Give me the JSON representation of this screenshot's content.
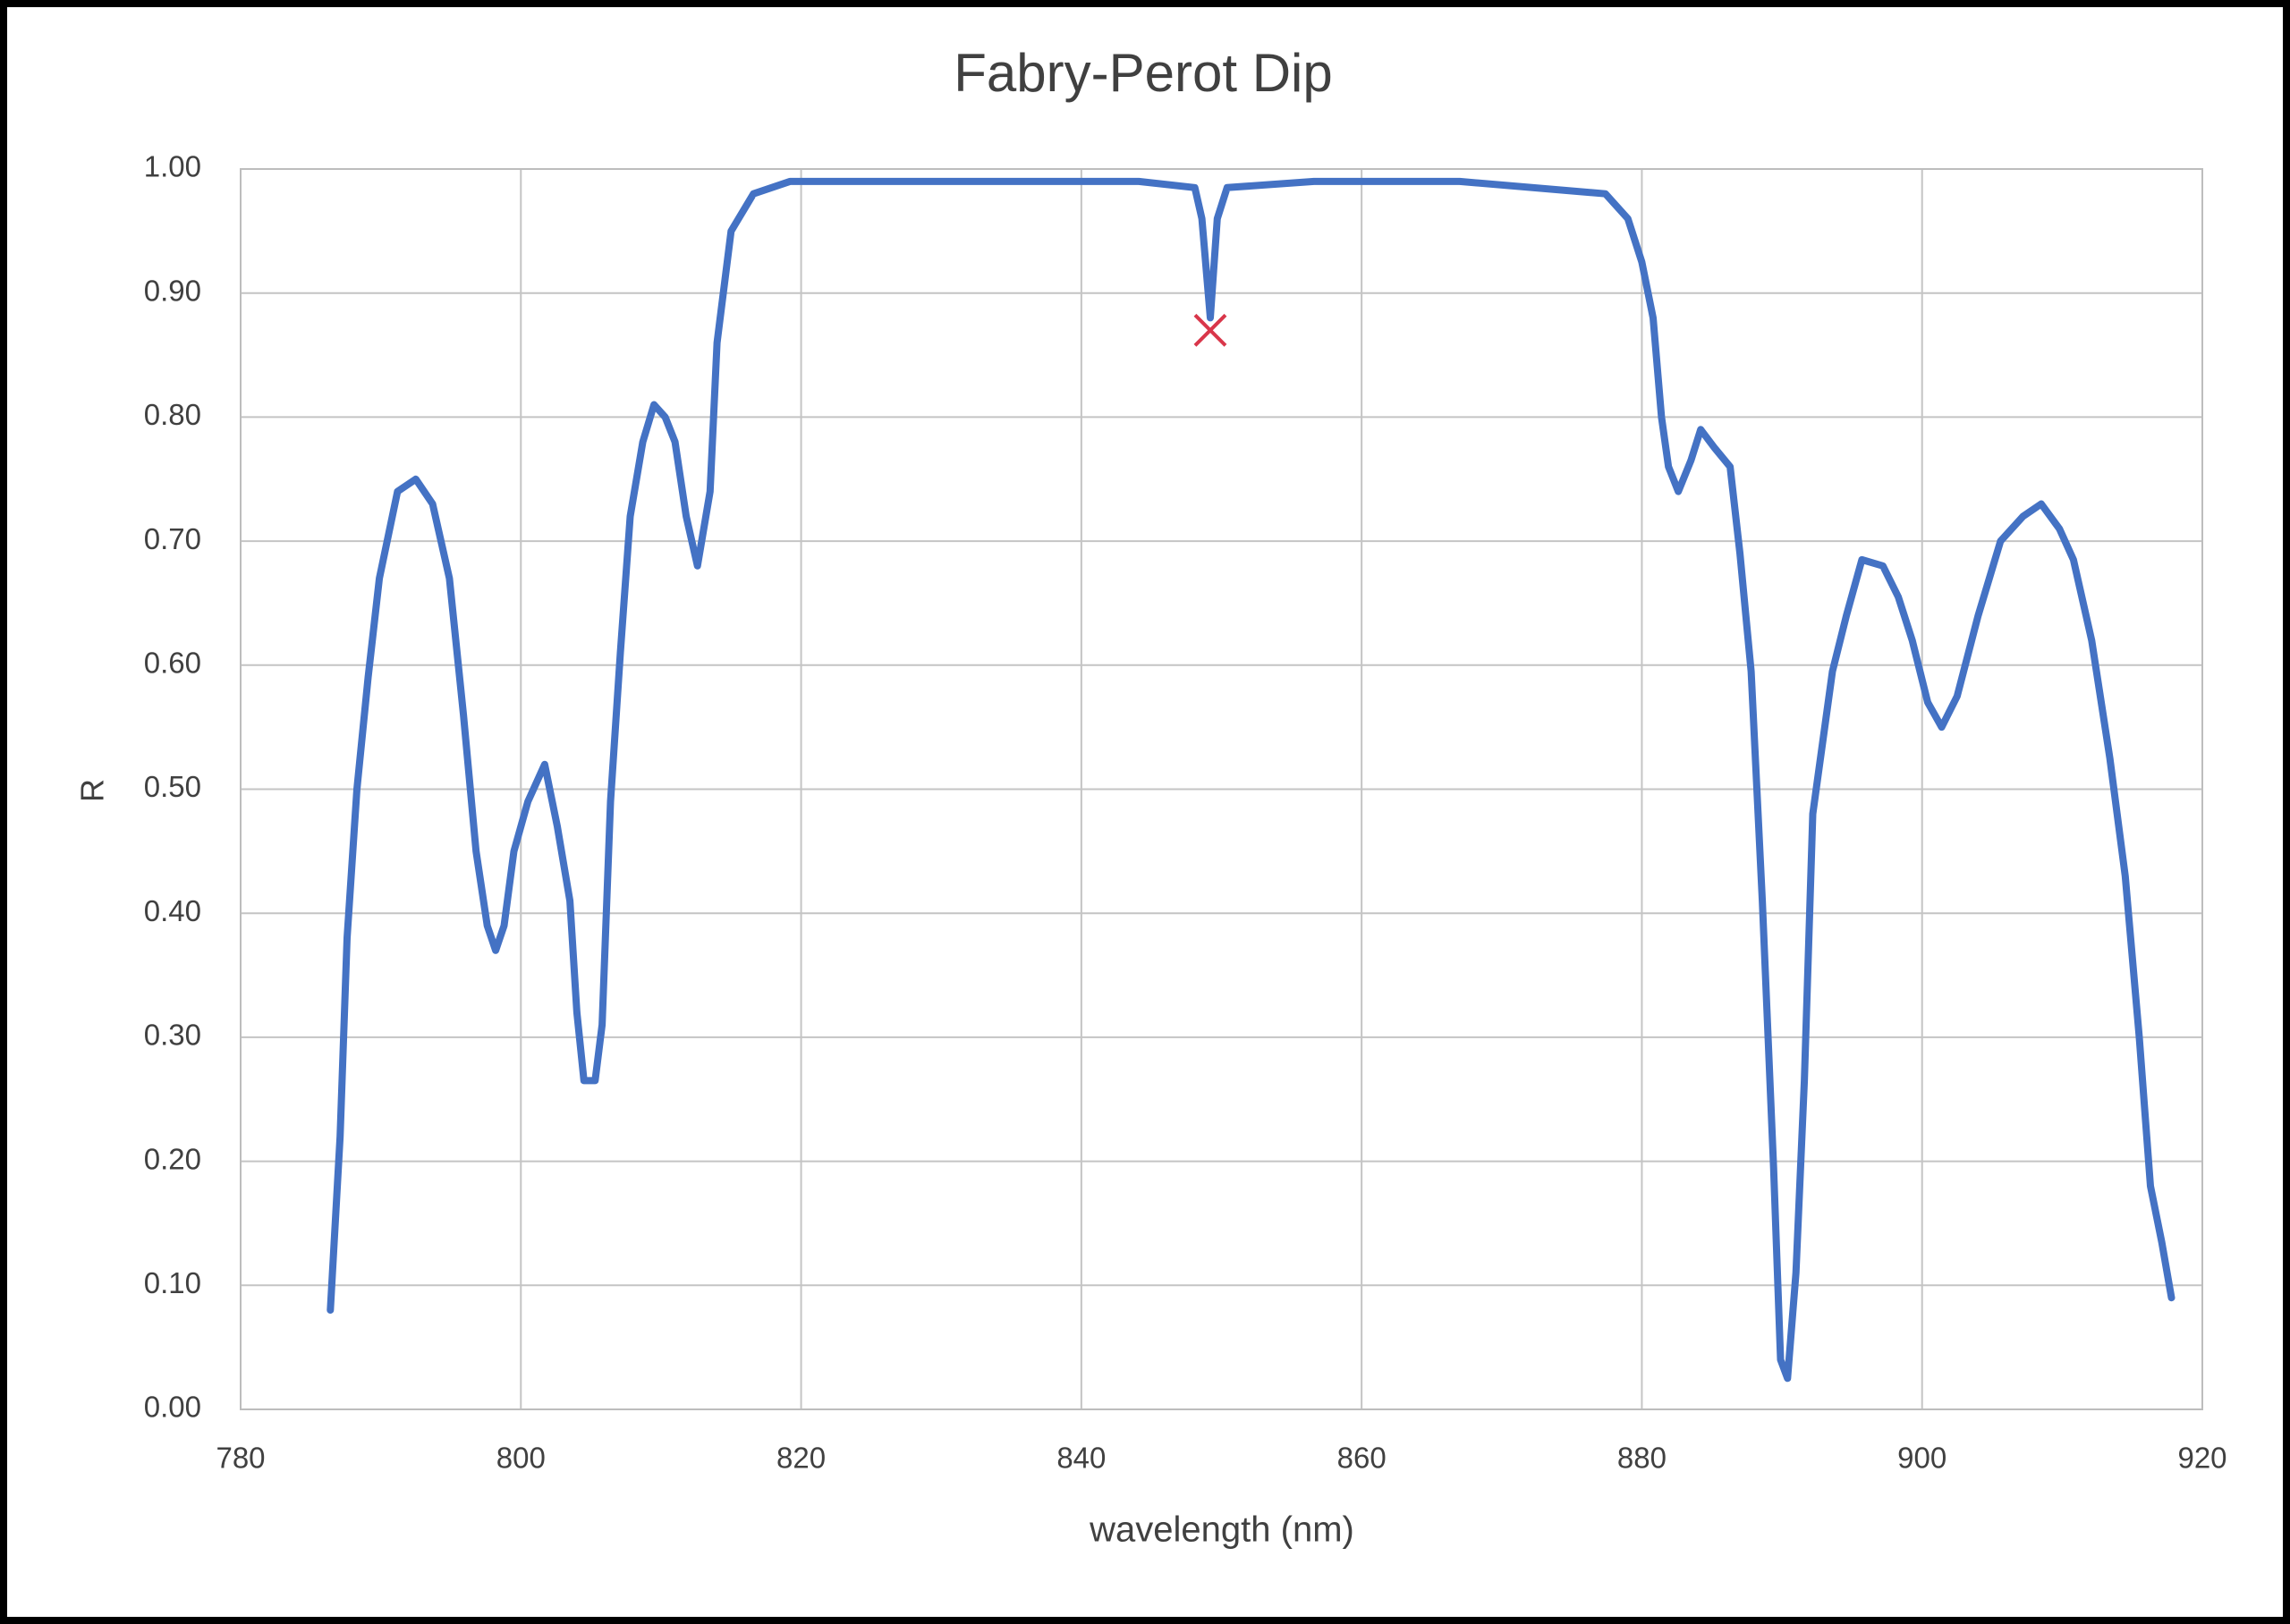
{
  "chart_data": {
    "type": "line",
    "title": "Fabry-Perot Dip",
    "x_label": "wavelength (nm)",
    "y_label": "R",
    "color": "#4472c4",
    "grid": true,
    "x": [
      786.4,
      787.1,
      787.6,
      788.3,
      789.1,
      789.9,
      791.2,
      792.5,
      793.7,
      794.9,
      795.9,
      796.8,
      797.6,
      798.2,
      798.8,
      799.5,
      800.5,
      801.7,
      802.6,
      803.5,
      804.0,
      804.5,
      805.3,
      805.8,
      806.4,
      807.1,
      807.8,
      808.7,
      809.5,
      810.3,
      811.0,
      811.8,
      812.6,
      813.5,
      814.0,
      815.0,
      816.6,
      819.2,
      825.3,
      836.0,
      844.1,
      848.1,
      848.6,
      849.2,
      849.7,
      850.4,
      856.6,
      867.0,
      877.4,
      879.0,
      880.0,
      880.8,
      881.4,
      881.9,
      882.6,
      883.5,
      884.2,
      885.2,
      886.3,
      887.0,
      887.8,
      888.6,
      889.4,
      889.9,
      890.4,
      891.0,
      891.6,
      892.2,
      893.6,
      894.6,
      895.7,
      897.2,
      898.3,
      899.3,
      900.4,
      901.4,
      902.5,
      904.0,
      905.6,
      907.2,
      908.5,
      909.8,
      910.8,
      912.1,
      913.4,
      914.5,
      915.5,
      916.3,
      917.1,
      917.8
    ],
    "values": [
      0.08,
      0.22,
      0.38,
      0.5,
      0.59,
      0.67,
      0.74,
      0.75,
      0.73,
      0.67,
      0.56,
      0.45,
      0.39,
      0.37,
      0.39,
      0.45,
      0.49,
      0.52,
      0.47,
      0.41,
      0.32,
      0.265,
      0.265,
      0.31,
      0.49,
      0.61,
      0.72,
      0.78,
      0.81,
      0.8,
      0.78,
      0.72,
      0.68,
      0.74,
      0.86,
      0.95,
      0.98,
      0.99,
      0.99,
      0.99,
      0.99,
      0.985,
      0.96,
      0.88,
      0.96,
      0.985,
      0.99,
      0.99,
      0.98,
      0.96,
      0.925,
      0.88,
      0.8,
      0.76,
      0.74,
      0.765,
      0.79,
      0.775,
      0.76,
      0.69,
      0.595,
      0.41,
      0.195,
      0.04,
      0.025,
      0.11,
      0.265,
      0.48,
      0.595,
      0.64,
      0.685,
      0.68,
      0.655,
      0.62,
      0.57,
      0.55,
      0.575,
      0.64,
      0.7,
      0.72,
      0.73,
      0.71,
      0.685,
      0.62,
      0.525,
      0.43,
      0.3,
      0.18,
      0.135,
      0.09
    ],
    "marker": {
      "x": 849.2,
      "y": 0.87,
      "color": "#d9364a"
    },
    "xlim": [
      780,
      920
    ],
    "xticks": [
      780,
      800,
      820,
      840,
      860,
      880,
      900,
      920
    ],
    "ylim": [
      0,
      1
    ],
    "yticks": [
      {
        "value": 0,
        "label": "0.00"
      },
      {
        "value": 0.1,
        "label": "0.10"
      },
      {
        "value": 0.2,
        "label": "0.20"
      },
      {
        "value": 0.3,
        "label": "0.30"
      },
      {
        "value": 0.4,
        "label": "0.40"
      },
      {
        "value": 0.5,
        "label": "0.50"
      },
      {
        "value": 0.6,
        "label": "0.60"
      },
      {
        "value": 0.7,
        "label": "0.70"
      },
      {
        "value": 0.8,
        "label": "0.80"
      },
      {
        "value": 0.9,
        "label": "0.90"
      },
      {
        "value": 1,
        "label": "1.00"
      }
    ]
  }
}
